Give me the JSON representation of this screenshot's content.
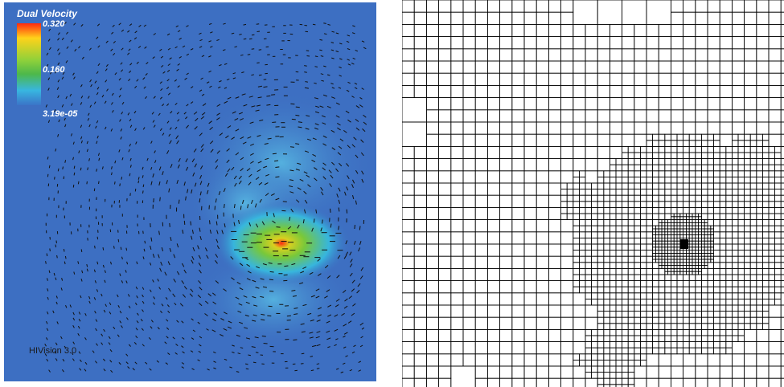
{
  "velocity_view": {
    "legend": {
      "title": "Dual Velocity",
      "max_label": "0.320",
      "mid_label": "0.160",
      "min_label": "3.19e-05",
      "colors": [
        "#ff2a10",
        "#ffd21a",
        "#8fd13a",
        "#4db84a",
        "#38b6e0",
        "#3a74c8"
      ]
    },
    "watermark": "HIVision 3.0",
    "background_color": "#3d6fc2",
    "glyph_color": "#111111"
  },
  "mesh_view": {
    "line_color": "#000000",
    "background_color": "#ffffff"
  }
}
